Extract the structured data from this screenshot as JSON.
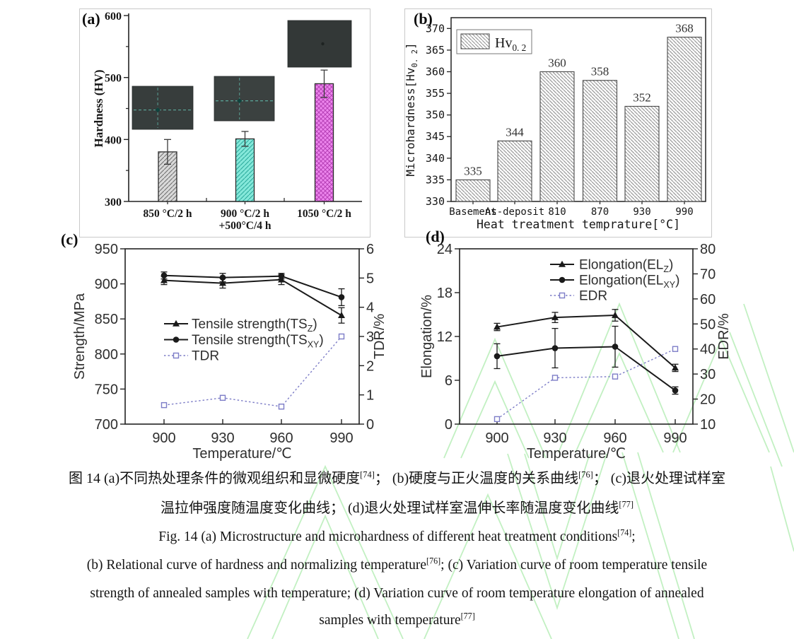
{
  "figure": {
    "background": "#ffffff",
    "watermark_color": "#8fe48f",
    "panel_labels": [
      "(a)",
      "(b)",
      "(c)",
      "(d)"
    ]
  },
  "chart_data": [
    {
      "panel": "(a)",
      "type": "bar",
      "ylabel": "Hardness (HV)",
      "ylim": [
        300,
        600
      ],
      "yticks": [
        300,
        400,
        500,
        600
      ],
      "yticks_minor": [
        350,
        450,
        550
      ],
      "categories": [
        [
          "850 °C/2 h"
        ],
        [
          "900 °C/2 h",
          "+500°C/4 h"
        ],
        [
          "1050 °C/2 h"
        ]
      ],
      "values": [
        380,
        401,
        490
      ],
      "errors": [
        20,
        12,
        22
      ],
      "bar_fill": [
        "#d9d9d9",
        "#85e8da",
        "#ee86ee"
      ],
      "bar_hatch": [
        "#707070",
        "#2dab9d",
        "#b843b8"
      ],
      "hatch_type": [
        "diag",
        "diag",
        "cross"
      ],
      "insets": "three dark optical micrographs with dashed indentation cross marks"
    },
    {
      "panel": "(b)",
      "type": "bar",
      "legend": {
        "pre": "Hv",
        "sub": "0. 2"
      },
      "legend_position": "top-left",
      "xlabel": "Heat treatment temprature[°C]",
      "ylabel": {
        "pre": "Microhardness[Hv",
        "sub": "0. 2",
        "post": "]"
      },
      "ylim": [
        330,
        372.5
      ],
      "yticks": [
        330,
        335,
        340,
        345,
        350,
        355,
        360,
        365,
        370
      ],
      "categories": [
        "Basement",
        "As-deposit",
        "810",
        "870",
        "930",
        "990"
      ],
      "values": [
        335,
        344,
        360,
        358,
        352,
        368
      ],
      "bar_fill": "#fafafa",
      "bar_hatch": "#8f8f8f"
    },
    {
      "panel": "(c)",
      "type": "line",
      "x": [
        900,
        930,
        960,
        990
      ],
      "xlabel": "Temperature/℃",
      "ylabel": "Strength/MPa",
      "ylabel_right": "TDR/%",
      "ylim": [
        700,
        950
      ],
      "yticks": [
        700,
        750,
        800,
        850,
        900,
        950
      ],
      "ylim_right": [
        0,
        6
      ],
      "yticks_right": [
        0,
        1,
        2,
        3,
        4,
        5,
        6
      ],
      "legend_position": "center-left",
      "series": [
        {
          "label": {
            "pre": "Tensile strength(TS",
            "sub": "Z",
            "post": ")"
          },
          "marker": "triangle",
          "color": "#1a1a1a",
          "axis": "left",
          "values": [
            905,
            901,
            906,
            855
          ],
          "errors": [
            6,
            7,
            7,
            11
          ]
        },
        {
          "label": {
            "pre": "Tensile strength(TS",
            "sub": "XY",
            "post": ")"
          },
          "marker": "circle",
          "color": "#1a1a1a",
          "axis": "left",
          "values": [
            912,
            909,
            911,
            881
          ],
          "errors": [
            5,
            6,
            4,
            12
          ]
        },
        {
          "label": {
            "pre": "TDR"
          },
          "marker": "square-open",
          "dashed": true,
          "color": "#7d7dc7",
          "axis": "right",
          "values": [
            0.65,
            0.9,
            0.6,
            3.0
          ]
        }
      ]
    },
    {
      "panel": "(d)",
      "type": "line",
      "x": [
        900,
        930,
        960,
        990
      ],
      "xlabel": "Temperature/℃",
      "ylabel": "Elongation/%",
      "ylabel_right": "EDR/%",
      "ylim": [
        0,
        24
      ],
      "yticks": [
        0,
        6,
        12,
        18,
        24
      ],
      "ylim_right": [
        10,
        80
      ],
      "yticks_right": [
        10,
        20,
        30,
        40,
        50,
        60,
        70,
        80
      ],
      "legend_position": "top-center",
      "series": [
        {
          "label": {
            "pre": "Elongation(EL",
            "sub": "Z",
            "post": ")"
          },
          "marker": "triangle",
          "color": "#1a1a1a",
          "axis": "left",
          "values": [
            13.3,
            14.6,
            14.9,
            7.7
          ],
          "errors": [
            0.5,
            0.7,
            0.8,
            0.5
          ]
        },
        {
          "label": {
            "pre": "Elongation(EL",
            "sub": "XY",
            "post": ")"
          },
          "marker": "circle",
          "color": "#1a1a1a",
          "axis": "left",
          "values": [
            9.3,
            10.4,
            10.6,
            4.6
          ],
          "errors": [
            1.7,
            2.7,
            2.8,
            0.5
          ]
        },
        {
          "label": {
            "pre": "EDR"
          },
          "marker": "square-open",
          "dashed": true,
          "color": "#7d7dc7",
          "axis": "right",
          "values": [
            12,
            28.5,
            29,
            40
          ]
        }
      ]
    }
  ],
  "caption": {
    "zh1": [
      "图 14 (a)不同热处理条件的微观组织和显微硬度",
      "[74]",
      "； (b)硬度与正火温度的关系曲线",
      "[76]",
      "； (c)退火处理试样室"
    ],
    "zh2": [
      "温拉伸强度随温度变化曲线； (d)退火处理试样室温伸长率随温度变化曲线",
      "[77]"
    ],
    "en1": [
      "Fig. 14 (a) Microstructure and microhardness of different heat treatment conditions",
      "[74]",
      ";"
    ],
    "en2": [
      "(b) Relational curve of hardness and normalizing temperature",
      "[76]",
      "; (c) Variation curve of room temperature tensile"
    ],
    "en3": [
      "strength of annealed samples with temperature; (d) Variation curve of room temperature elongation of annealed"
    ],
    "en4": [
      "samples with temperature",
      "[77]"
    ]
  }
}
